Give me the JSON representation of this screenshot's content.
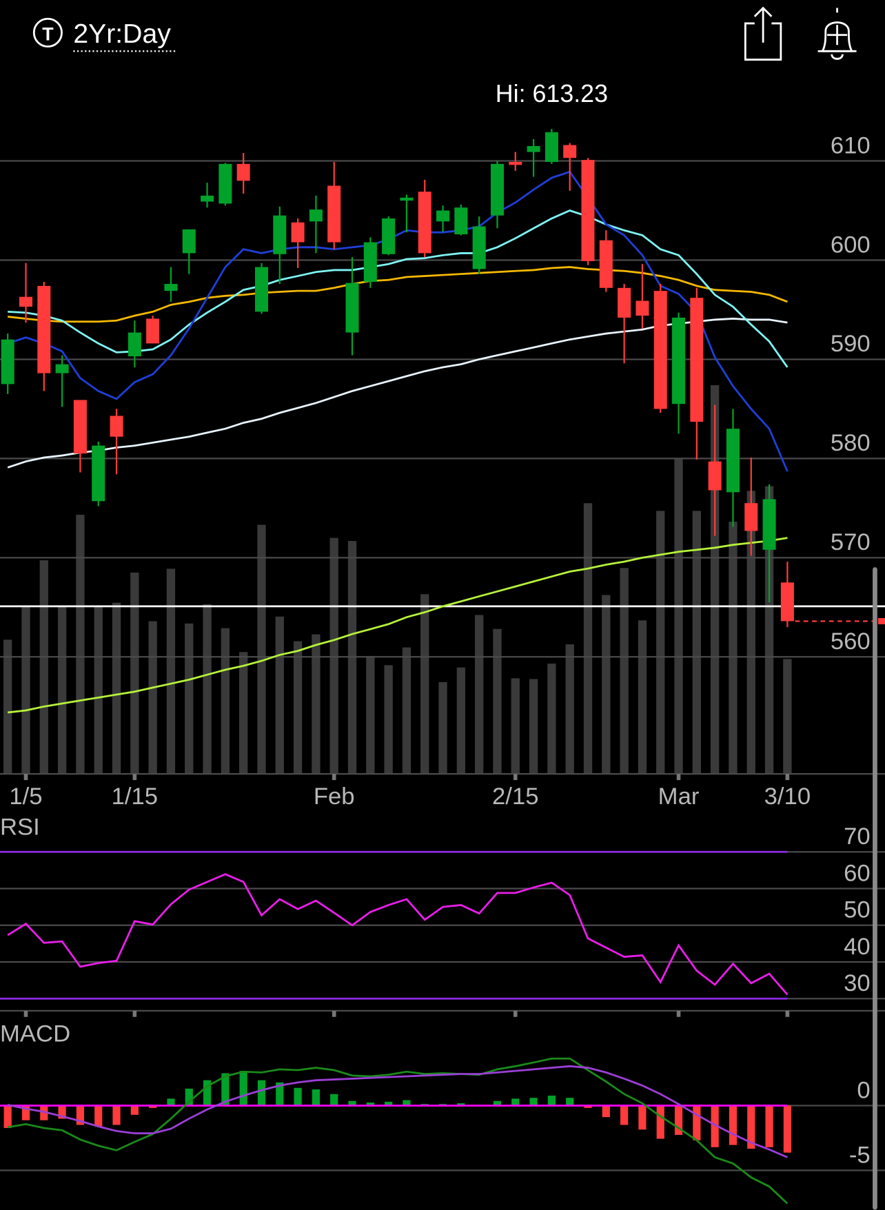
{
  "header": {
    "icon": "T",
    "title": "2Yr:Day"
  },
  "chart_data": [
    {
      "type": "candlestick",
      "annotation": "Hi: 613.23",
      "categories": [
        null,
        "1/5",
        null,
        null,
        null,
        null,
        null,
        "1/15",
        null,
        null,
        null,
        null,
        null,
        null,
        null,
        null,
        null,
        null,
        "Feb",
        null,
        null,
        null,
        null,
        null,
        null,
        null,
        null,
        null,
        "2/15",
        null,
        null,
        null,
        null,
        null,
        null,
        null,
        null,
        "Mar",
        null,
        null,
        null,
        null,
        null,
        "3/10"
      ],
      "open": [
        587.5,
        596.3,
        597.4,
        588.6,
        585.9,
        575.7,
        584.3,
        590.3,
        594.1,
        596.9,
        600.7,
        605.9,
        605.7,
        609.7,
        594.8,
        600.6,
        603.8,
        603.9,
        607.5,
        592.7,
        597.8,
        600.6,
        606.0,
        606.9,
        603.9,
        602.6,
        599.1,
        604.5,
        609.9,
        610.9,
        609.9,
        611.6,
        610.1,
        602.0,
        597.2,
        595.9,
        596.9,
        585.5,
        596.2,
        579.7,
        576.6,
        575.5,
        570.8,
        567.5
      ],
      "high": [
        592.6,
        599.7,
        597.8,
        590.4,
        585.9,
        581.7,
        585.0,
        593.9,
        594.4,
        599.3,
        603.1,
        607.8,
        609.8,
        610.8,
        599.7,
        605.4,
        604.2,
        606.5,
        609.9,
        600.3,
        602.3,
        604.4,
        606.6,
        608.1,
        605.5,
        605.6,
        604.4,
        610.0,
        610.9,
        612.2,
        613.23,
        611.8,
        610.3,
        603.0,
        597.6,
        599.6,
        597.6,
        594.7,
        597.2,
        585.4,
        585.0,
        580.1,
        577.4,
        569.6
      ],
      "low": [
        586.5,
        593.7,
        586.8,
        585.2,
        578.6,
        575.2,
        578.4,
        589.2,
        591.6,
        595.8,
        598.6,
        605.3,
        605.5,
        606.7,
        594.6,
        597.6,
        599.2,
        600.7,
        601.1,
        590.4,
        597.2,
        600.5,
        602.8,
        600.3,
        602.8,
        602.5,
        598.6,
        603.2,
        609.0,
        608.4,
        609.7,
        607.0,
        599.5,
        596.8,
        589.6,
        593.1,
        584.6,
        582.5,
        579.9,
        572.2,
        573.1,
        570.2,
        565.5,
        563.0
      ],
      "close": [
        592.0,
        595.3,
        588.6,
        589.5,
        580.5,
        581.3,
        582.2,
        592.7,
        591.6,
        597.6,
        603.1,
        606.5,
        609.7,
        608.0,
        599.3,
        604.5,
        601.8,
        605.1,
        601.8,
        597.7,
        601.8,
        604.2,
        606.3,
        600.7,
        605.0,
        605.3,
        603.4,
        609.7,
        609.6,
        611.5,
        612.9,
        610.3,
        599.9,
        597.2,
        594.2,
        594.4,
        585.0,
        594.2,
        583.7,
        576.8,
        583.0,
        572.7,
        575.9,
        563.6
      ],
      "up_color": "#00a22a",
      "down_color": "#ff3b3b",
      "series": [
        {
          "color": "#b6f23a",
          "values": [
            554.4,
            554.6,
            555.0,
            555.3,
            555.6,
            555.9,
            556.2,
            556.5,
            556.9,
            557.3,
            557.7,
            558.2,
            558.7,
            559.1,
            559.6,
            560.2,
            560.6,
            561.2,
            561.7,
            562.3,
            562.8,
            563.3,
            564.0,
            564.5,
            565.1,
            565.6,
            566.1,
            566.6,
            567.1,
            567.6,
            568.1,
            568.6,
            568.9,
            569.3,
            569.6,
            570.0,
            570.3,
            570.6,
            570.8,
            571.0,
            571.3,
            571.5,
            571.7,
            572.0
          ]
        },
        {
          "color": "#e8f4ff",
          "values": [
            579.1,
            579.7,
            580.1,
            580.3,
            580.6,
            580.8,
            581.1,
            581.3,
            581.6,
            581.9,
            582.2,
            582.6,
            583.0,
            583.6,
            584.0,
            584.6,
            585.1,
            585.6,
            586.2,
            586.8,
            587.3,
            587.8,
            588.3,
            588.8,
            589.2,
            589.5,
            590.0,
            590.4,
            590.8,
            591.2,
            591.6,
            592.0,
            592.3,
            592.6,
            592.8,
            593.0,
            593.4,
            593.6,
            593.8,
            594.0,
            594.1,
            594.0,
            594.0,
            593.7
          ]
        },
        {
          "color": "#f5b800",
          "values": [
            594.3,
            594.1,
            593.9,
            593.8,
            593.8,
            593.8,
            593.9,
            594.4,
            594.8,
            595.5,
            595.8,
            596.2,
            596.4,
            596.5,
            596.7,
            596.8,
            596.9,
            596.9,
            597.2,
            597.6,
            597.9,
            598.0,
            598.3,
            598.4,
            598.5,
            598.6,
            598.7,
            598.8,
            598.9,
            599.0,
            599.2,
            599.3,
            599.1,
            599.0,
            598.9,
            598.7,
            598.4,
            598.0,
            597.4,
            597.0,
            596.9,
            596.8,
            596.5,
            595.8
          ]
        },
        {
          "color": "#7ff3f3",
          "values": [
            594.8,
            594.7,
            594.4,
            593.9,
            592.7,
            591.6,
            590.7,
            590.8,
            591.0,
            592.0,
            593.5,
            594.7,
            595.8,
            597.0,
            597.4,
            598.0,
            598.4,
            598.8,
            599.0,
            599.0,
            599.3,
            599.6,
            600.1,
            600.2,
            600.5,
            600.7,
            600.7,
            601.3,
            602.2,
            603.2,
            604.2,
            605.0,
            604.4,
            603.6,
            603.0,
            602.5,
            601.1,
            600.5,
            598.6,
            596.5,
            595.3,
            593.5,
            591.8,
            589.2
          ]
        },
        {
          "color": "#1f3fd8",
          "values": [
            591.6,
            592.2,
            591.6,
            590.8,
            588.1,
            586.8,
            586.0,
            587.7,
            588.5,
            590.4,
            593.1,
            596.2,
            599.3,
            601.1,
            600.7,
            601.1,
            601.3,
            601.3,
            601.1,
            601.3,
            601.5,
            602.1,
            603.0,
            602.8,
            602.8,
            603.0,
            603.4,
            604.8,
            605.8,
            607.1,
            608.3,
            608.9,
            606.3,
            603.6,
            602.5,
            600.5,
            597.4,
            596.6,
            594.7,
            590.2,
            587.3,
            585.0,
            583.0,
            578.7
          ]
        }
      ],
      "volume": [
        174,
        217,
        277,
        217,
        336,
        217,
        222,
        261,
        198,
        266,
        195,
        220,
        189,
        158,
        323,
        204,
        172,
        181,
        306,
        302,
        153,
        141,
        164,
        233,
        119,
        138,
        206,
        188,
        124,
        123,
        143,
        168,
        351,
        232,
        267,
        199,
        341,
        409,
        341,
        504,
        327,
        367,
        373,
        149
      ],
      "volume_color": "#3a3a3a",
      "volume_ylim": [
        0,
        913
      ],
      "reference_line": 565.1,
      "reference_color": "#ffffff",
      "last_price_color": "#ff3b3b",
      "ylim": [
        548.2,
        619.2
      ],
      "yticks": [
        560,
        570,
        580,
        590,
        600,
        610
      ],
      "grid": true
    },
    {
      "type": "line",
      "title": "RSI",
      "values": [
        47.3,
        50.4,
        45.2,
        45.6,
        38.7,
        39.7,
        40.3,
        51.1,
        50.2,
        55.7,
        59.7,
        61.8,
        63.9,
        61.8,
        52.7,
        57.1,
        54.4,
        56.7,
        53.4,
        50.0,
        53.6,
        55.5,
        57.1,
        51.5,
        55.0,
        55.5,
        53.2,
        58.8,
        58.8,
        60.3,
        61.6,
        58.2,
        46.4,
        43.9,
        41.4,
        41.8,
        34.5,
        44.5,
        37.6,
        33.8,
        39.5,
        34.2,
        36.8,
        31.1
      ],
      "color": "#e81ee8",
      "levels": [
        70,
        30
      ],
      "level_color": "#8a2be2",
      "ylim": [
        26.7,
        78.2
      ],
      "yticks": [
        30,
        40,
        50,
        60,
        70
      ],
      "grid": true
    },
    {
      "type": "macd",
      "title": "MACD",
      "macd": [
        -1.67,
        -1.43,
        -1.73,
        -1.9,
        -2.62,
        -3.1,
        -3.45,
        -2.8,
        -2.2,
        -1.01,
        0.3,
        1.49,
        2.26,
        2.62,
        2.56,
        2.8,
        2.74,
        2.92,
        2.74,
        2.32,
        2.26,
        2.38,
        2.62,
        2.44,
        2.5,
        2.44,
        2.38,
        2.8,
        3.04,
        3.33,
        3.63,
        3.63,
        2.74,
        1.85,
        0.89,
        0.18,
        -0.83,
        -1.73,
        -2.68,
        -3.99,
        -4.46,
        -5.54,
        -6.25,
        -7.56
      ],
      "signal": [
        0.06,
        -0.24,
        -0.48,
        -0.83,
        -1.19,
        -1.61,
        -1.96,
        -2.14,
        -2.14,
        -1.79,
        -1.01,
        -0.3,
        0.3,
        0.77,
        1.19,
        1.55,
        1.79,
        1.96,
        2.02,
        2.08,
        2.14,
        2.2,
        2.26,
        2.32,
        2.38,
        2.44,
        2.44,
        2.56,
        2.68,
        2.8,
        2.92,
        3.04,
        2.92,
        2.56,
        2.08,
        1.55,
        0.89,
        0.12,
        -0.71,
        -1.49,
        -2.2,
        -2.86,
        -3.39,
        -3.99
      ],
      "histogram": [
        -1.73,
        -1.13,
        -1.13,
        -1.01,
        -1.49,
        -1.61,
        -1.49,
        -0.71,
        -0.18,
        0.54,
        1.31,
        1.96,
        2.5,
        2.68,
        1.96,
        1.79,
        1.37,
        1.25,
        0.89,
        0.36,
        0.24,
        0.3,
        0.42,
        0.12,
        0.12,
        0.18,
        0,
        0.36,
        0.54,
        0.6,
        0.77,
        0.6,
        -0.18,
        -0.89,
        -1.49,
        -1.85,
        -2.56,
        -2.26,
        -2.68,
        -3.21,
        -3.04,
        -3.33,
        -3.21,
        -3.63
      ],
      "macd_color": "#1a8a1a",
      "signal_color": "#9b3fd6",
      "zero_color": "#ff00ff",
      "up_color": "#00a22a",
      "down_color": "#ff3b3b",
      "ylim": [
        -8.04,
        6.43
      ],
      "yticks": [
        0,
        -5
      ],
      "grid": true
    }
  ]
}
